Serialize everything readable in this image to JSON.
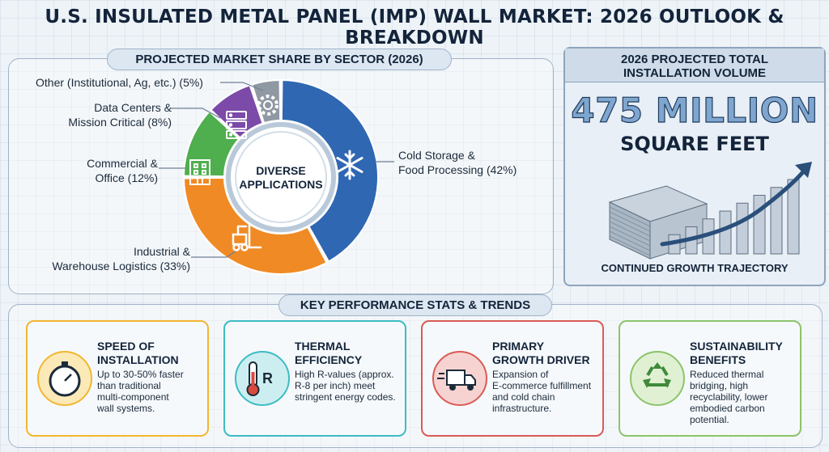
{
  "title": "U.S. INSULATED METAL PANEL (IMP) WALL MARKET: 2026 OUTLOOK & BREAKDOWN",
  "share_section": {
    "heading": "PROJECTED MARKET SHARE BY SECTOR (2026)",
    "center_label_line1": "DIVERSE",
    "center_label_line2": "APPLICATIONS"
  },
  "chart_data": {
    "type": "pie",
    "title": "PROJECTED MARKET SHARE BY SECTOR (2026)",
    "slices": [
      {
        "label_line1": "Cold Storage &",
        "label_line2": "Food Processing (42%)",
        "value": 42,
        "color": "#2f67b3",
        "icon": "snowflake-icon"
      },
      {
        "label_line1": "Industrial &",
        "label_line2": "Warehouse Logistics (33%)",
        "value": 33,
        "color": "#f08a24",
        "icon": "forklift-icon"
      },
      {
        "label_line1": "Commercial &",
        "label_line2": "Office (12%)",
        "value": 12,
        "color": "#4fae4e",
        "icon": "office-building-icon"
      },
      {
        "label_line1": "Data Centers &",
        "label_line2": "Mission Critical (8%)",
        "value": 8,
        "color": "#7c4aa8",
        "icon": "server-icon"
      },
      {
        "label_line1": "Other (Institutional, Ag, etc.) (5%)",
        "label_line2": "",
        "value": 5,
        "color": "#8f98a3",
        "icon": "gear-icon"
      }
    ]
  },
  "volume": {
    "heading_line1": "2026 PROJECTED TOTAL",
    "heading_line2": "INSTALLATION VOLUME",
    "number": "475 MILLION",
    "unit": "SQUARE FEET",
    "footer": "CONTINUED GROWTH TRAJECTORY",
    "growth_bars": [
      1,
      2,
      3,
      4,
      5,
      6,
      7,
      8
    ]
  },
  "stats_section": {
    "heading": "KEY PERFORMANCE STATS & TRENDS",
    "cards": [
      {
        "title_line1": "SPEED OF",
        "title_line2": "INSTALLATION",
        "body": [
          "Up to 30-50% faster",
          "than traditional",
          "multi-component",
          "wall systems."
        ],
        "border": "#f2b632",
        "icon_bg": "#fbe9b7",
        "icon": "stopwatch-icon"
      },
      {
        "title_line1": "THERMAL",
        "title_line2": "EFFICIENCY",
        "body": [
          "High R-values (approx.",
          "R-8 per inch) meet",
          "stringent energy codes."
        ],
        "border": "#3cbcc4",
        "icon_bg": "#cdeef0",
        "icon": "thermometer-icon",
        "icon_text": "R"
      },
      {
        "title_line1": "PRIMARY",
        "title_line2": "GROWTH DRIVER",
        "body": [
          "Expansion of",
          "E-commerce fulfillment",
          "and cold chain",
          "infrastructure."
        ],
        "border": "#d95b55",
        "icon_bg": "#f6d3d1",
        "icon": "delivery-truck-icon"
      },
      {
        "title_line1": "SUSTAINABILITY",
        "title_line2": "BENEFITS",
        "body": [
          "Reduced thermal",
          "bridging, high",
          "recyclability, lower",
          "embodied carbon",
          "potential."
        ],
        "border": "#8cc46a",
        "icon_bg": "#e0f0d3",
        "icon": "recycle-icon"
      }
    ]
  }
}
